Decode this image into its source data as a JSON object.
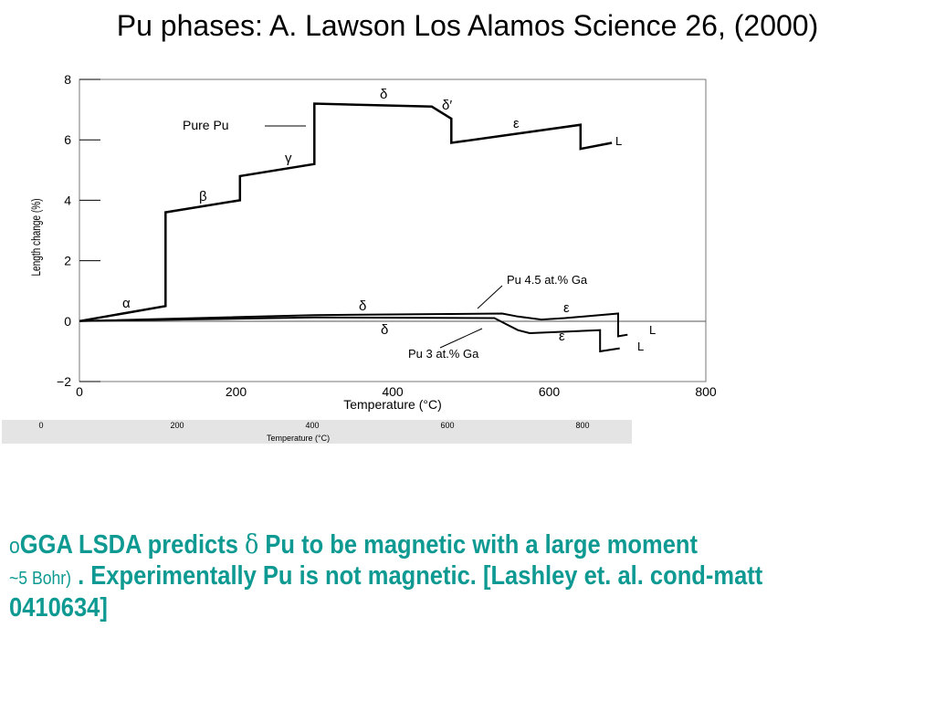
{
  "slide": {
    "title": "Pu  phases: A. Lawson  Los Alamos Science 26, (2000)"
  },
  "chart_data": {
    "type": "line",
    "xlabel": "Temperature (°C)",
    "ylabel": "Length change (%)",
    "xlim": [
      0,
      800
    ],
    "ylim": [
      -2,
      8
    ],
    "xticks": [
      "0",
      "200",
      "400",
      "600",
      "800"
    ],
    "yticks": [
      "−2",
      "0",
      "2",
      "4",
      "6",
      "8"
    ],
    "grid": false,
    "series": [
      {
        "name": "Pure Pu",
        "x": [
          0,
          110,
          110,
          205,
          205,
          300,
          300,
          450,
          450,
          475,
          475,
          640,
          640,
          680
        ],
        "y": [
          0,
          0.5,
          3.6,
          4.0,
          4.8,
          5.2,
          7.2,
          7.1,
          7.1,
          6.7,
          5.9,
          6.5,
          5.7,
          5.9
        ]
      },
      {
        "name": "Pu 4.5 at.% Ga",
        "x": [
          0,
          300,
          540,
          560,
          590,
          620,
          688,
          688,
          700
        ],
        "y": [
          0,
          0.2,
          0.25,
          0.15,
          0.05,
          0.1,
          0.25,
          -0.5,
          -0.45
        ]
      },
      {
        "name": "Pu 3 at.% Ga",
        "x": [
          0,
          300,
          530,
          545,
          560,
          575,
          620,
          665,
          665,
          690
        ],
        "y": [
          0,
          0.12,
          0.1,
          -0.1,
          -0.3,
          -0.4,
          -0.35,
          -0.3,
          -1.0,
          -0.9
        ]
      }
    ],
    "annotations": [
      "Pure Pu",
      "α",
      "β",
      "γ",
      "δ",
      "δ′",
      "ε",
      "L",
      "Pu 4.5 at.% Ga",
      "δ",
      "ε",
      "L",
      "δ",
      "Pu 3 at.% Ga",
      "ε",
      "L"
    ]
  },
  "duplicate_axis": {
    "ticks": [
      "0",
      "200",
      "400",
      "600",
      "800"
    ],
    "label": "Temperature (°C)"
  },
  "bullet": {
    "marker": "o",
    "text1": "GGA LSDA  predicts",
    "delta": "δ",
    "text2": "Pu to be magnetic with a  large moment",
    "small": "~5 Bohr)",
    "text3": " . Experimentally Pu is not magnetic. [Lashley et. al. cond-matt 0410634]"
  },
  "colors": {
    "accent": "#0e9a92",
    "strip": "#e4e4e4"
  }
}
